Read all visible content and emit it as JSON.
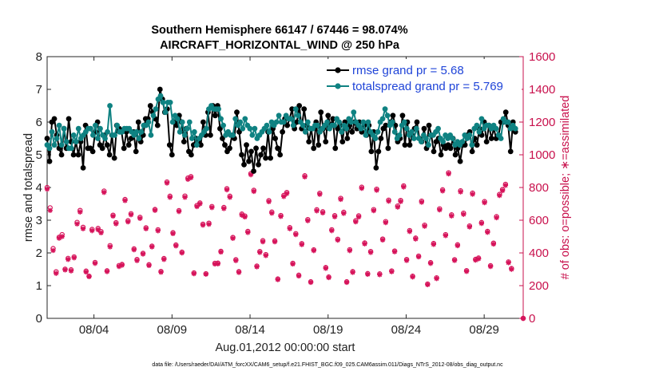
{
  "chart_data": {
    "type": "line",
    "title_line1": "Southern Hemisphere 66147 / 67446 = 98.074%",
    "title_line2": "AIRCRAFT_HORIZONTAL_WIND @ 250 hPa",
    "xlabel": "Aug.01,2012 00:00:00 start",
    "ylabel_left": "rmse and totalspread",
    "ylabel_right": "# of obs: o=possible; ∗=assimilated",
    "footer": "data file: /Users/raeder/DAI/ATM_forcXX/CAM6_setup/f.e21.FHIST_BGC.f09_025.CAM6assim.011/Diags_NTrS_2012-08/obs_diag_output.nc",
    "x_tick_labels": [
      "08/04",
      "08/09",
      "08/14",
      "08/19",
      "08/24",
      "08/29"
    ],
    "x_tick_values": [
      4,
      9,
      14,
      19,
      24,
      29
    ],
    "xlim": [
      1,
      31.5
    ],
    "ylim_left": [
      0,
      8
    ],
    "ylim_right": [
      0,
      1600
    ],
    "y_left_ticks": [
      "0",
      "1",
      "2",
      "3",
      "4",
      "5",
      "6",
      "7",
      "8"
    ],
    "y_right_ticks": [
      "0",
      "200",
      "400",
      "600",
      "800",
      "1000",
      "1200",
      "1400",
      "1600"
    ],
    "legend": [
      "rmse grand pr = 5.68",
      "totalspread grand pr = 5.769"
    ],
    "legend_position": "top-right",
    "colors": {
      "rmse": "#000000",
      "spread": "#0f8282",
      "obs": "#d6135a",
      "right_axis": "#c8104c",
      "legend_text": "#1f44d8"
    },
    "series": [
      {
        "name": "rmse grand pr = 5.68",
        "values": [
          5.5,
          4.8,
          6.0,
          6.1,
          5.6,
          5.2,
          5.0,
          5.8,
          5.2,
          6.1,
          5.4,
          5.0,
          5.4,
          5.0,
          5.4,
          4.6,
          5.9,
          5.2,
          5.2,
          5.1,
          5.7,
          6.0,
          5.3,
          5.2,
          5.6,
          5.3,
          5.0,
          5.6,
          4.9,
          5.9,
          5.8,
          5.7,
          5.2,
          5.7,
          5.3,
          5.5,
          5.7,
          5.1,
          6.0,
          5.4,
          5.6,
          6.1,
          6.1,
          6.5,
          6.3,
          6.1,
          5.9,
          7.0,
          6.7,
          6.3,
          6.4,
          5.3,
          5.0,
          6.0,
          5.9,
          6.2,
          6.0,
          5.4,
          5.8,
          5.1,
          5.0,
          5.3,
          5.5,
          5.4,
          5.3,
          6.0,
          5.6,
          6.3,
          5.6,
          6.5,
          6.2,
          6.5,
          5.8,
          5.5,
          5.3,
          5.1,
          5.2,
          5.6,
          5.5,
          6.3,
          5.7,
          5.0,
          4.7,
          5.3,
          4.8,
          5.1,
          4.5,
          5.2,
          4.7,
          5.0,
          5.2,
          4.9,
          5.7,
          4.9,
          5.8,
          5.5,
          5.2,
          5.0,
          5.7,
          6.1,
          5.9,
          6.1,
          6.4,
          5.8,
          6.0,
          6.5,
          5.8,
          6.4,
          5.9,
          5.4,
          5.8,
          5.2,
          6.0,
          5.3,
          6.3,
          5.8,
          5.4,
          6.2,
          5.9,
          6.1,
          5.2,
          5.8,
          5.9,
          5.4,
          6.0,
          5.5,
          5.9,
          5.7,
          6.0,
          5.8,
          6.0,
          5.7,
          5.9,
          5.6,
          5.9,
          5.1,
          5.7,
          4.6,
          5.1,
          5.5,
          5.8,
          5.9,
          5.2,
          6.0,
          6.2,
          5.9,
          5.4,
          5.5,
          6.2,
          5.3,
          6.0,
          5.3,
          5.6,
          5.8,
          6.0,
          5.5,
          5.4,
          5.8,
          5.2,
          5.9,
          5.6,
          5.1,
          5.4,
          5.5,
          5.0,
          5.3,
          5.2,
          5.3,
          5.2,
          5.5,
          5.0,
          5.2,
          4.8,
          5.3,
          5.3,
          5.6,
          5.7,
          5.1,
          5.5,
          5.3,
          5.8,
          5.6,
          6.0,
          5.4,
          5.9,
          5.5,
          5.8,
          5.5,
          5.6,
          6.0,
          6.0,
          6.3,
          5.9,
          5.1,
          6.0,
          5.7
        ]
      },
      {
        "name": "totalspread grand pr = 5.769",
        "values": [
          5.3,
          5.2,
          5.7,
          5.3,
          5.5,
          5.9,
          5.3,
          5.8,
          5.4,
          5.2,
          5.2,
          5.6,
          5.4,
          5.8,
          5.5,
          5.6,
          5.7,
          5.8,
          5.8,
          5.6,
          5.9,
          5.5,
          5.8,
          5.6,
          5.5,
          5.7,
          6.5,
          5.6,
          5.6,
          5.9,
          5.7,
          5.7,
          5.8,
          5.8,
          5.8,
          5.7,
          5.6,
          5.7,
          5.5,
          5.7,
          5.9,
          5.9,
          6.0,
          5.6,
          6.2,
          6.4,
          6.7,
          6.8,
          6.6,
          6.3,
          6.6,
          6.6,
          6.0,
          6.2,
          6.1,
          5.7,
          6.0,
          5.6,
          5.8,
          6.0,
          5.5,
          5.7,
          5.3,
          5.5,
          5.6,
          5.7,
          5.8,
          6.4,
          6.5,
          6.4,
          6.4,
          6.4,
          6.1,
          5.9,
          5.6,
          5.7,
          5.6,
          5.6,
          6.1,
          5.9,
          6.0,
          5.8,
          6.1,
          5.9,
          5.8,
          5.6,
          5.8,
          5.5,
          5.6,
          5.7,
          5.8,
          5.9,
          5.7,
          6.0,
          5.9,
          6.0,
          6.2,
          6.0,
          6.0,
          6.2,
          6.1,
          6.1,
          5.9,
          6.4,
          6.2,
          6.0,
          5.9,
          5.7,
          6.0,
          5.8,
          5.8,
          5.9,
          5.9,
          5.7,
          5.8,
          5.9,
          6.0,
          5.8,
          5.9,
          5.9,
          6.1,
          6.0,
          5.7,
          5.9,
          5.8,
          6.1,
          6.0,
          6.3,
          6.0,
          5.9,
          5.8,
          6.0,
          5.6,
          6.0,
          5.7,
          5.6,
          5.5,
          5.7,
          6.0,
          6.1,
          6.4,
          6.2,
          5.9,
          6.0,
          5.7,
          5.5,
          5.6,
          5.9,
          6.0,
          5.8,
          5.6,
          5.7,
          5.5,
          5.8,
          5.5,
          5.4,
          5.6,
          5.5,
          5.3,
          5.6,
          5.6,
          5.7,
          5.8,
          5.5,
          5.4,
          5.6,
          5.5,
          5.6,
          5.5,
          5.3,
          5.4,
          5.3,
          5.4,
          5.6,
          5.5,
          5.6,
          5.3,
          5.8,
          5.9,
          5.7,
          6.1,
          5.8,
          5.9,
          5.9,
          5.8,
          5.9,
          5.8,
          5.6,
          5.5,
          6.1,
          6.0,
          6.0,
          5.8,
          5.9,
          5.8
        ]
      }
    ],
    "obs_possible": [
      800,
      676,
      427,
      285,
      496,
      512,
      301,
      367,
      297,
      376,
      587,
      660,
      557,
      289,
      258,
      544,
      342,
      550,
      531,
      778,
      291,
      445,
      631,
      585,
      323,
      330,
      727,
      597,
      640,
      425,
      360,
      618,
      398,
      554,
      328,
      442,
      666,
      542,
      287,
      366,
      834,
      747,
      524,
      449,
      659,
      405,
      748,
      858,
      867,
      278,
      690,
      706,
      576,
      273,
      582,
      684,
      337,
      338,
      410,
      678,
      793,
      747,
      495,
      359,
      286,
      638,
      626,
      532,
      885,
      783,
      320,
      409,
      475,
      390,
      720,
      650,
      474,
      241,
      629,
      752,
      770,
      555,
      337,
      518,
      264,
      457,
      872,
      604,
      224,
      419,
      664,
      765,
      652,
      311,
      253,
      542,
      628,
      484,
      734,
      649,
      224,
      420,
      286,
      597,
      627,
      802,
      461,
      274,
      409,
      665,
      790,
      272,
      485,
      592,
      723,
      290,
      412,
      687,
      721,
      810,
      360,
      537,
      258,
      491,
      381,
      717,
      570,
      210,
      341,
      458,
      248,
      670,
      786,
      512,
      890,
      633,
      359,
      450,
      780,
      643,
      292,
      565,
      766,
      361,
      369,
      586,
      714,
      532,
      322,
      460,
      622,
      758,
      788,
      820,
      345,
      305,
      0
    ],
    "obs_assimilated": [
      790,
      660,
      415,
      275,
      490,
      500,
      296,
      360,
      290,
      370,
      577,
      650,
      548,
      283,
      255,
      536,
      336,
      542,
      523,
      770,
      286,
      437,
      625,
      578,
      317,
      325,
      720,
      590,
      633,
      419,
      353,
      611,
      393,
      548,
      323,
      437,
      660,
      535,
      282,
      360,
      827,
      740,
      518,
      443,
      653,
      400,
      740,
      850,
      860,
      273,
      683,
      700,
      570,
      270,
      575,
      677,
      332,
      333,
      405,
      671,
      786,
      740,
      489,
      353,
      281,
      631,
      620,
      525,
      878,
      776,
      315,
      403,
      468,
      384,
      713,
      643,
      468,
      237,
      623,
      745,
      763,
      548,
      332,
      512,
      259,
      451,
      865,
      597,
      220,
      414,
      657,
      758,
      645,
      306,
      249,
      536,
      621,
      478,
      727,
      642,
      220,
      414,
      281,
      590,
      620,
      795,
      455,
      269,
      403,
      658,
      783,
      267,
      479,
      585,
      716,
      285,
      407,
      680,
      714,
      803,
      354,
      531,
      253,
      485,
      376,
      710,
      563,
      206,
      336,
      452,
      243,
      663,
      779,
      506,
      883,
      626,
      354,
      444,
      773,
      636,
      287,
      559,
      759,
      356,
      364,
      580,
      707,
      526,
      317,
      454,
      615,
      751,
      781,
      813,
      340,
      300,
      0
    ]
  }
}
